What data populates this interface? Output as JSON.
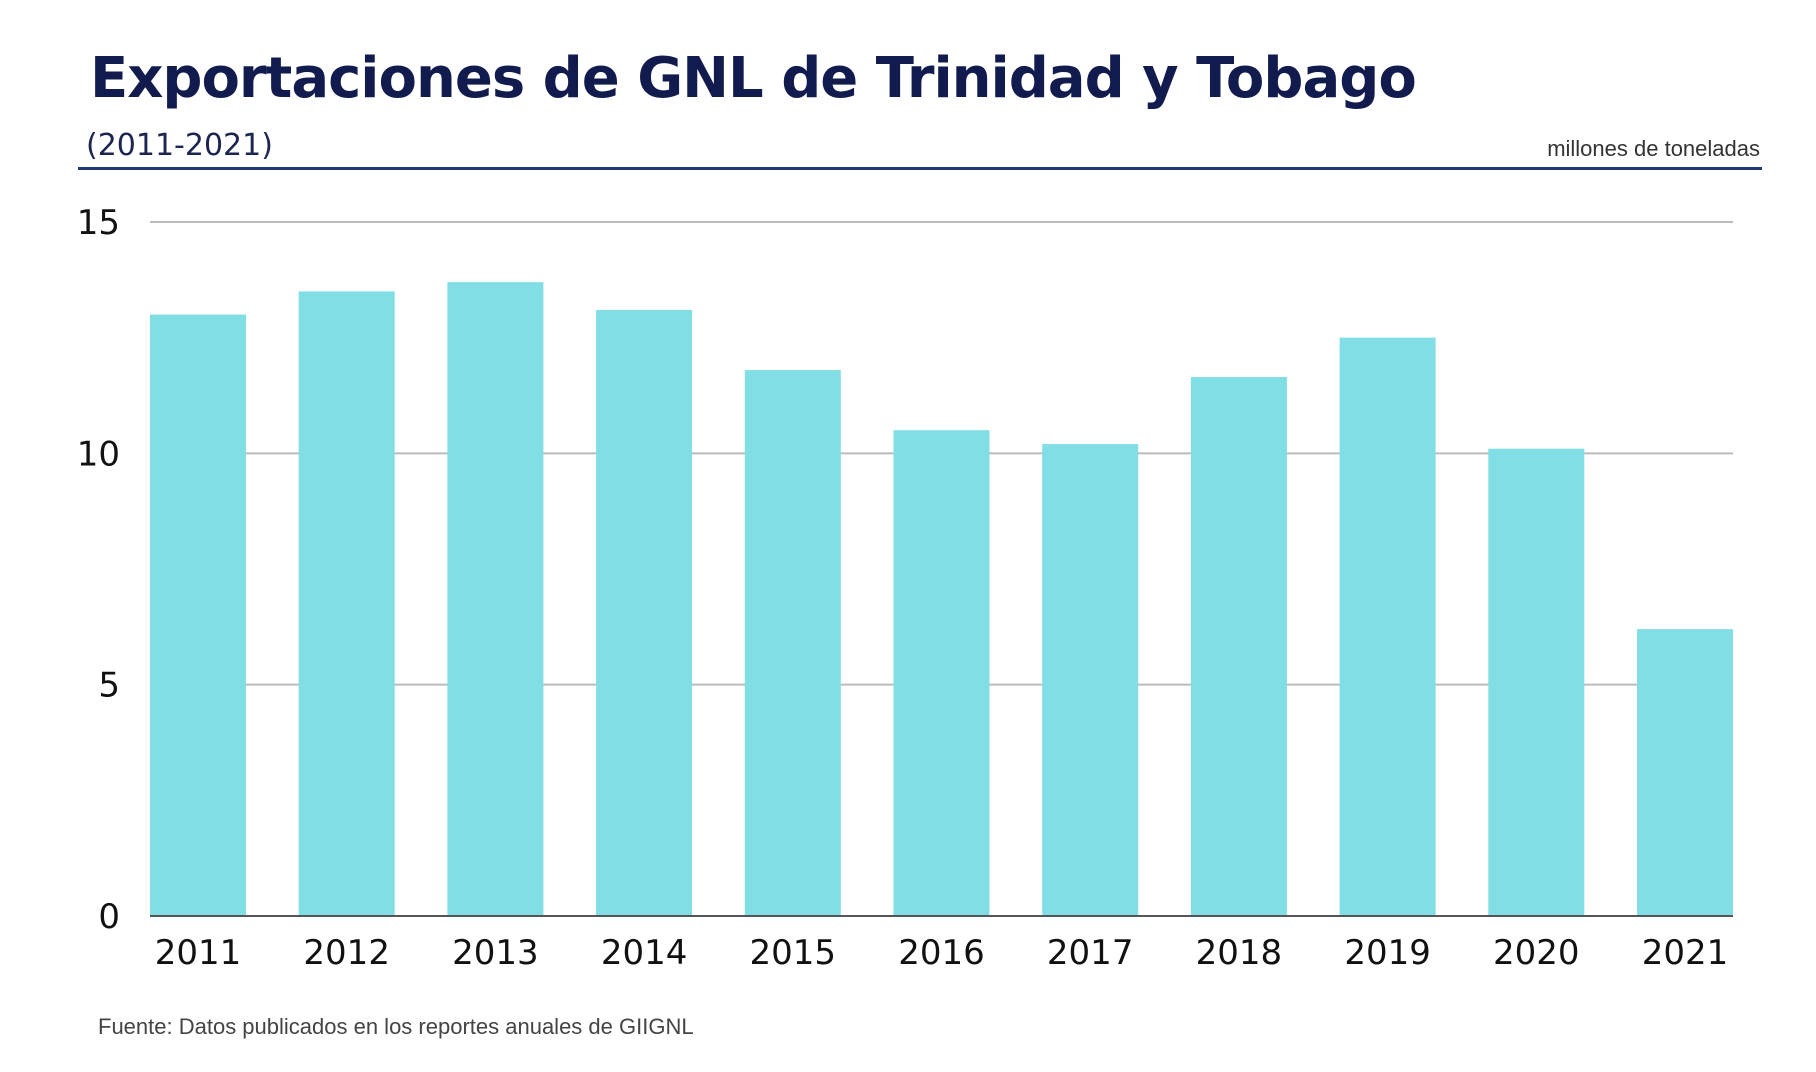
{
  "header": {
    "title": "Exportaciones de GNL de Trinidad y Tobago",
    "subtitle": "(2011-2021)",
    "unit": "millones de toneladas"
  },
  "footer": {
    "source": "Fuente: Datos publicados en los reportes anuales de GIIGNL"
  },
  "colors": {
    "bar": "#80deE4",
    "grid": "#bbbbbb",
    "baseline": "#555555",
    "title": "#111b4d",
    "rule": "#1e3a78"
  },
  "chart_data": {
    "type": "bar",
    "title": "Exportaciones de GNL de Trinidad y Tobago",
    "subtitle": "(2011-2021)",
    "xlabel": "",
    "ylabel": "millones de toneladas",
    "categories": [
      "2011",
      "2012",
      "2013",
      "2014",
      "2015",
      "2016",
      "2017",
      "2018",
      "2019",
      "2020",
      "2021"
    ],
    "values": [
      13.0,
      13.5,
      13.7,
      13.1,
      11.8,
      10.5,
      10.2,
      11.65,
      12.5,
      10.1,
      6.2
    ],
    "yticks": [
      "0",
      "5",
      "10",
      "15"
    ],
    "ylim": [
      0,
      15
    ],
    "grid": true,
    "legend": "none"
  }
}
